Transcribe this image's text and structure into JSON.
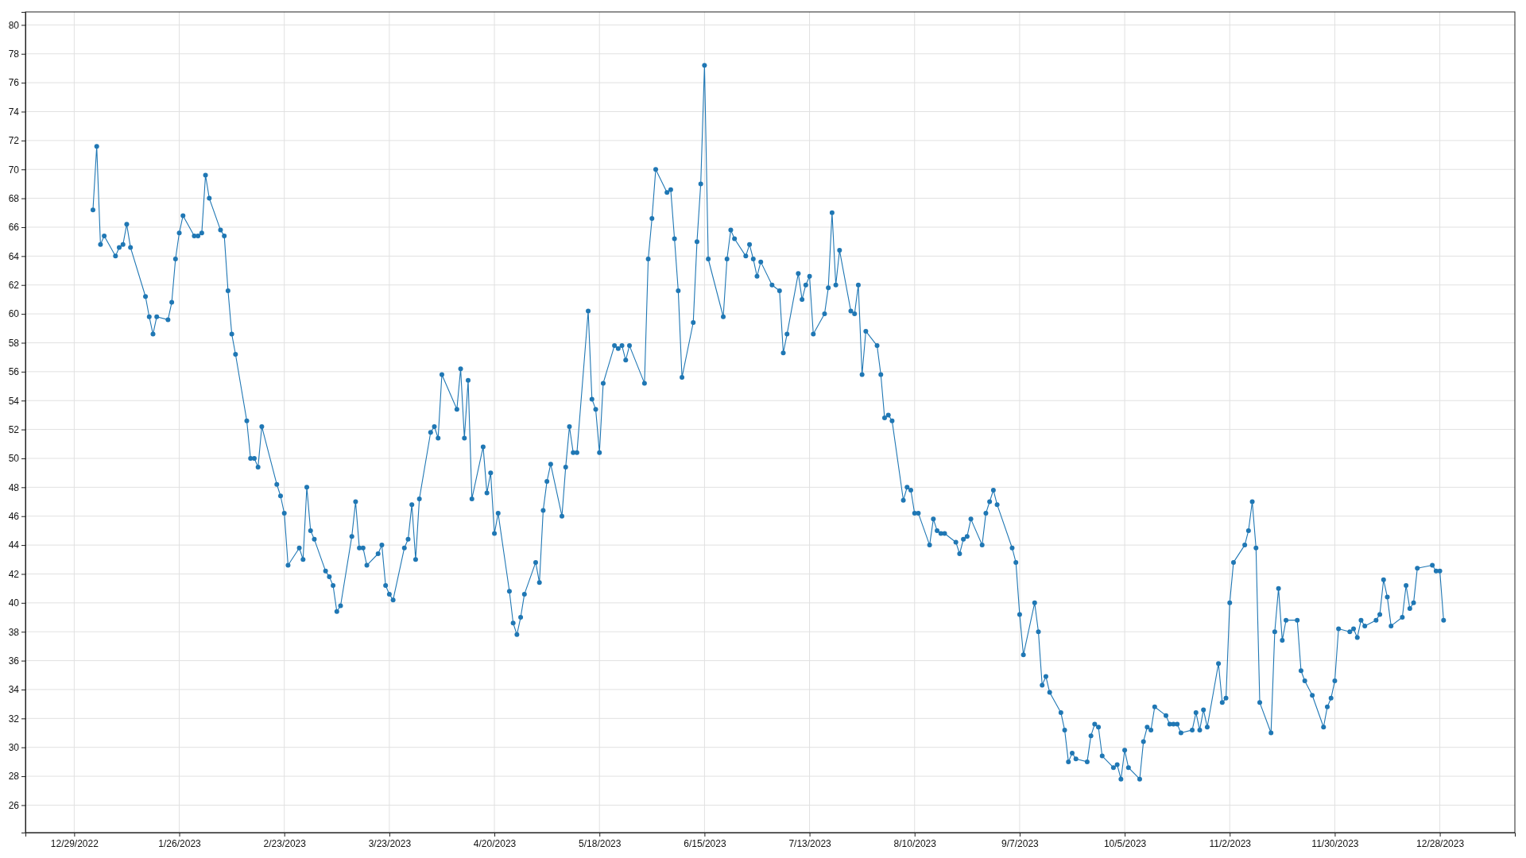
{
  "chart_data": {
    "type": "line",
    "color": "#1f77b4",
    "marker": "circle",
    "line_style": "solid",
    "grid": true,
    "xlim": [
      "2022-12-16",
      "2024-01-17"
    ],
    "xticks": [
      {
        "value": "2022-12-29",
        "label": "12/29/2022"
      },
      {
        "value": "2023-01-26",
        "label": "1/26/2023"
      },
      {
        "value": "2023-02-23",
        "label": "2/23/2023"
      },
      {
        "value": "2023-03-23",
        "label": "3/23/2023"
      },
      {
        "value": "2023-04-20",
        "label": "4/20/2023"
      },
      {
        "value": "2023-05-18",
        "label": "5/18/2023"
      },
      {
        "value": "2023-06-15",
        "label": "6/15/2023"
      },
      {
        "value": "2023-07-13",
        "label": "7/13/2023"
      },
      {
        "value": "2023-08-10",
        "label": "8/10/2023"
      },
      {
        "value": "2023-09-07",
        "label": "9/7/2023"
      },
      {
        "value": "2023-10-05",
        "label": "10/5/2023"
      },
      {
        "value": "2023-11-02",
        "label": "11/2/2023"
      },
      {
        "value": "2023-11-30",
        "label": "11/30/2023"
      },
      {
        "value": "2023-12-28",
        "label": "12/28/2023"
      }
    ],
    "ylim": [
      24.1,
      80.9
    ],
    "yticks": [
      26,
      28,
      30,
      32,
      34,
      36,
      38,
      40,
      42,
      44,
      46,
      48,
      50,
      52,
      54,
      56,
      58,
      60,
      62,
      64,
      66,
      68,
      70,
      72,
      74,
      76,
      78,
      80
    ],
    "x": [
      "2023-01-03",
      "2023-01-04",
      "2023-01-05",
      "2023-01-06",
      "2023-01-09",
      "2023-01-10",
      "2023-01-11",
      "2023-01-12",
      "2023-01-13",
      "2023-01-17",
      "2023-01-18",
      "2023-01-19",
      "2023-01-20",
      "2023-01-23",
      "2023-01-24",
      "2023-01-25",
      "2023-01-26",
      "2023-01-27",
      "2023-01-30",
      "2023-01-31",
      "2023-02-01",
      "2023-02-02",
      "2023-02-03",
      "2023-02-06",
      "2023-02-07",
      "2023-02-08",
      "2023-02-09",
      "2023-02-10",
      "2023-02-13",
      "2023-02-14",
      "2023-02-15",
      "2023-02-16",
      "2023-02-17",
      "2023-02-21",
      "2023-02-22",
      "2023-02-23",
      "2023-02-24",
      "2023-02-27",
      "2023-02-28",
      "2023-03-01",
      "2023-03-02",
      "2023-03-03",
      "2023-03-06",
      "2023-03-07",
      "2023-03-08",
      "2023-03-09",
      "2023-03-10",
      "2023-03-13",
      "2023-03-14",
      "2023-03-15",
      "2023-03-16",
      "2023-03-17",
      "2023-03-20",
      "2023-03-21",
      "2023-03-22",
      "2023-03-23",
      "2023-03-24",
      "2023-03-27",
      "2023-03-28",
      "2023-03-29",
      "2023-03-30",
      "2023-03-31",
      "2023-04-03",
      "2023-04-04",
      "2023-04-05",
      "2023-04-06",
      "2023-04-10",
      "2023-04-11",
      "2023-04-12",
      "2023-04-13",
      "2023-04-14",
      "2023-04-17",
      "2023-04-18",
      "2023-04-19",
      "2023-04-20",
      "2023-04-21",
      "2023-04-24",
      "2023-04-25",
      "2023-04-26",
      "2023-04-27",
      "2023-04-28",
      "2023-05-01",
      "2023-05-02",
      "2023-05-03",
      "2023-05-04",
      "2023-05-05",
      "2023-05-08",
      "2023-05-09",
      "2023-05-10",
      "2023-05-11",
      "2023-05-12",
      "2023-05-15",
      "2023-05-16",
      "2023-05-17",
      "2023-05-18",
      "2023-05-19",
      "2023-05-22",
      "2023-05-23",
      "2023-05-24",
      "2023-05-25",
      "2023-05-26",
      "2023-05-30",
      "2023-05-31",
      "2023-06-01",
      "2023-06-02",
      "2023-06-05",
      "2023-06-06",
      "2023-06-07",
      "2023-06-08",
      "2023-06-09",
      "2023-06-12",
      "2023-06-13",
      "2023-06-14",
      "2023-06-15",
      "2023-06-16",
      "2023-06-20",
      "2023-06-21",
      "2023-06-22",
      "2023-06-23",
      "2023-06-26",
      "2023-06-27",
      "2023-06-28",
      "2023-06-29",
      "2023-06-30",
      "2023-07-03",
      "2023-07-05",
      "2023-07-06",
      "2023-07-07",
      "2023-07-10",
      "2023-07-11",
      "2023-07-12",
      "2023-07-13",
      "2023-07-14",
      "2023-07-17",
      "2023-07-18",
      "2023-07-19",
      "2023-07-20",
      "2023-07-21",
      "2023-07-24",
      "2023-07-25",
      "2023-07-26",
      "2023-07-27",
      "2023-07-28",
      "2023-07-31",
      "2023-08-01",
      "2023-08-02",
      "2023-08-03",
      "2023-08-04",
      "2023-08-07",
      "2023-08-08",
      "2023-08-09",
      "2023-08-10",
      "2023-08-11",
      "2023-08-14",
      "2023-08-15",
      "2023-08-16",
      "2023-08-17",
      "2023-08-18",
      "2023-08-21",
      "2023-08-22",
      "2023-08-23",
      "2023-08-24",
      "2023-08-25",
      "2023-08-28",
      "2023-08-29",
      "2023-08-30",
      "2023-08-31",
      "2023-09-01",
      "2023-09-05",
      "2023-09-06",
      "2023-09-07",
      "2023-09-08",
      "2023-09-11",
      "2023-09-12",
      "2023-09-13",
      "2023-09-14",
      "2023-09-15",
      "2023-09-18",
      "2023-09-19",
      "2023-09-20",
      "2023-09-21",
      "2023-09-22",
      "2023-09-25",
      "2023-09-26",
      "2023-09-27",
      "2023-09-28",
      "2023-09-29",
      "2023-10-02",
      "2023-10-03",
      "2023-10-04",
      "2023-10-05",
      "2023-10-06",
      "2023-10-09",
      "2023-10-10",
      "2023-10-11",
      "2023-10-12",
      "2023-10-13",
      "2023-10-16",
      "2023-10-17",
      "2023-10-18",
      "2023-10-19",
      "2023-10-20",
      "2023-10-23",
      "2023-10-24",
      "2023-10-25",
      "2023-10-26",
      "2023-10-27",
      "2023-10-30",
      "2023-10-31",
      "2023-11-01",
      "2023-11-02",
      "2023-11-03",
      "2023-11-06",
      "2023-11-07",
      "2023-11-08",
      "2023-11-09",
      "2023-11-10",
      "2023-11-13",
      "2023-11-14",
      "2023-11-15",
      "2023-11-16",
      "2023-11-17",
      "2023-11-20",
      "2023-11-21",
      "2023-11-22",
      "2023-11-24",
      "2023-11-27",
      "2023-11-28",
      "2023-11-29",
      "2023-11-30",
      "2023-12-01",
      "2023-12-04",
      "2023-12-05",
      "2023-12-06",
      "2023-12-07",
      "2023-12-08",
      "2023-12-11",
      "2023-12-12",
      "2023-12-13",
      "2023-12-14",
      "2023-12-15",
      "2023-12-18",
      "2023-12-19",
      "2023-12-20",
      "2023-12-21",
      "2023-12-22",
      "2023-12-26",
      "2023-12-27",
      "2023-12-28",
      "2023-12-29"
    ],
    "values": [
      67.2,
      71.6,
      64.8,
      65.4,
      64.0,
      64.6,
      64.8,
      66.2,
      64.6,
      61.2,
      59.8,
      58.6,
      59.8,
      59.6,
      60.8,
      63.8,
      65.6,
      66.8,
      65.4,
      65.4,
      65.6,
      69.6,
      68.0,
      65.8,
      65.4,
      61.6,
      58.6,
      57.2,
      52.6,
      50.0,
      50.0,
      49.4,
      52.2,
      48.2,
      47.4,
      46.2,
      42.6,
      43.8,
      43.0,
      48.0,
      45.0,
      44.4,
      42.2,
      41.8,
      41.2,
      39.4,
      39.8,
      44.6,
      47.0,
      43.8,
      43.8,
      42.6,
      43.4,
      44.0,
      41.2,
      40.6,
      40.2,
      43.8,
      44.4,
      46.8,
      43.0,
      47.2,
      51.8,
      52.2,
      51.4,
      55.8,
      53.4,
      56.2,
      51.4,
      55.4,
      47.2,
      50.8,
      47.6,
      49.0,
      44.8,
      46.2,
      40.8,
      38.6,
      37.8,
      39.0,
      40.6,
      42.8,
      41.4,
      46.4,
      48.4,
      49.6,
      46.0,
      49.4,
      52.2,
      50.4,
      50.4,
      60.2,
      54.1,
      53.4,
      50.4,
      55.2,
      57.8,
      57.6,
      57.8,
      56.8,
      57.8,
      55.2,
      63.8,
      66.6,
      70.0,
      68.4,
      68.6,
      65.2,
      61.6,
      55.6,
      59.4,
      65.0,
      69.0,
      77.2,
      63.8,
      59.8,
      63.8,
      65.8,
      65.2,
      64.0,
      64.8,
      63.8,
      62.6,
      63.6,
      62.0,
      61.6,
      57.3,
      58.6,
      62.8,
      61.0,
      62.0,
      62.6,
      58.6,
      60.0,
      61.8,
      67.0,
      62.0,
      64.4,
      60.2,
      60.0,
      62.0,
      55.8,
      58.8,
      57.8,
      55.8,
      52.8,
      53.0,
      52.6,
      47.1,
      48.0,
      47.8,
      46.2,
      46.2,
      44.0,
      45.8,
      45.0,
      44.8,
      44.8,
      44.2,
      43.4,
      44.4,
      44.6,
      45.8,
      44.0,
      46.2,
      47.0,
      47.8,
      46.8,
      43.8,
      42.8,
      39.2,
      36.4,
      40.0,
      38.0,
      34.3,
      34.9,
      33.8,
      32.4,
      31.2,
      29.0,
      29.6,
      29.2,
      29.0,
      30.8,
      31.6,
      31.4,
      29.4,
      28.6,
      28.8,
      27.8,
      29.8,
      28.6,
      27.8,
      30.4,
      31.4,
      31.2,
      32.8,
      32.2,
      31.6,
      31.6,
      31.6,
      31.0,
      31.2,
      32.4,
      31.2,
      32.6,
      31.4,
      35.8,
      33.1,
      33.4,
      40.0,
      42.8,
      44.0,
      45.0,
      47.0,
      43.8,
      33.1,
      31.0,
      38.0,
      41.0,
      37.4,
      38.8,
      38.8,
      35.3,
      34.6,
      33.6,
      31.4,
      32.8,
      33.4,
      34.6,
      38.2,
      38.0,
      38.2,
      37.6,
      38.8,
      38.4,
      38.8,
      39.2,
      41.6,
      40.4,
      38.4,
      39.0,
      41.2,
      39.6,
      40.0,
      42.4,
      42.6,
      42.2,
      42.2,
      38.8
    ]
  }
}
